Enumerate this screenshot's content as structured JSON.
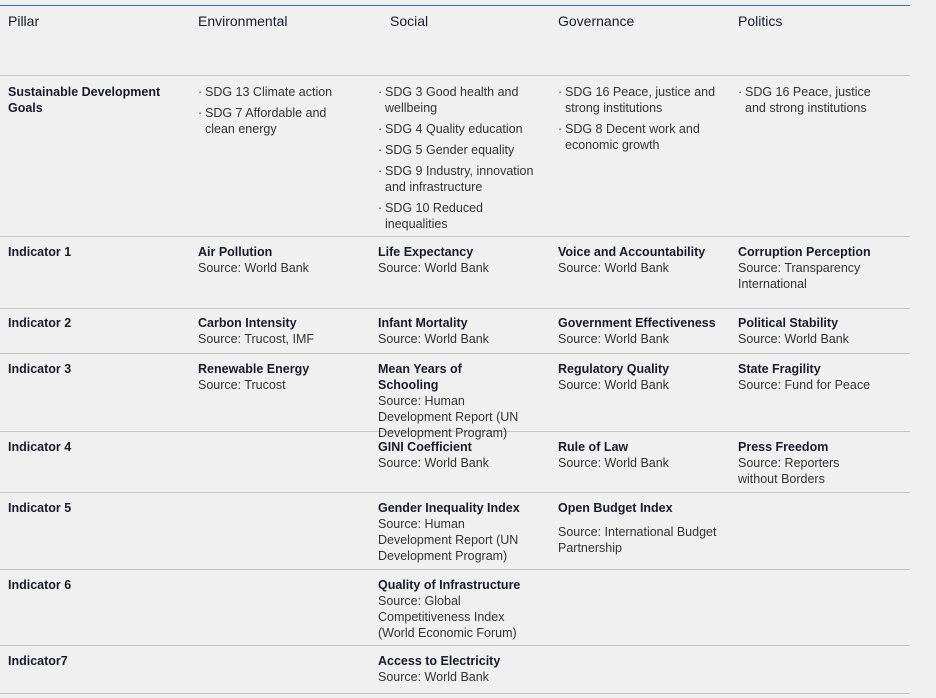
{
  "table": {
    "header": [
      "Pillar",
      "Environmental",
      "Social",
      "Governance",
      "Politics"
    ],
    "sdg_row": {
      "label": "Sustainable Development Goals",
      "cells": [
        [
          "SDG 13 Climate action",
          "SDG 7 Affordable and clean energy"
        ],
        [
          "SDG 3 Good health and wellbeing",
          "SDG 4 Quality education",
          "SDG 5 Gender equality",
          "SDG 9 Industry, innovation and infrastructure",
          "SDG 10 Reduced inequalities"
        ],
        [
          "SDG 16 Peace, justice and strong institutions",
          "SDG 8 Decent work and economic growth"
        ],
        [
          "SDG 16 Peace, justice and strong institutions"
        ]
      ]
    },
    "rows": [
      {
        "label": "Indicator 1",
        "cells": [
          {
            "name": "Air Pollution",
            "source": "Source: World Bank"
          },
          {
            "name": "Life Expectancy",
            "source": "Source: World Bank"
          },
          {
            "name": "Voice and Accountability",
            "source": "Source: World Bank"
          },
          {
            "name": "Corruption Perception",
            "source": "Source: Transparency International"
          }
        ]
      },
      {
        "label": "Indicator 2",
        "cells": [
          {
            "name": "Carbon Intensity",
            "source": "Source: Trucost, IMF"
          },
          {
            "name": "Infant Mortality",
            "source": "Source: World Bank"
          },
          {
            "name": "Government Effectiveness",
            "source": "Source: World Bank"
          },
          {
            "name": "Political Stability",
            "source": "Source: World Bank"
          }
        ]
      },
      {
        "label": "Indicator 3",
        "cells": [
          {
            "name": "Renewable Energy",
            "source": "Source: Trucost"
          },
          {
            "name": "Mean Years of Schooling",
            "source": "Source: Human Development Report (UN Development Program)"
          },
          {
            "name": "Regulatory Quality",
            "source": "Source: World Bank"
          },
          {
            "name": "State Fragility",
            "source": "Source: Fund for Peace"
          }
        ]
      },
      {
        "label": "Indicator 4",
        "cells": [
          null,
          {
            "name": "GINI Coefficient",
            "source": "Source: World Bank"
          },
          {
            "name": "Rule of Law",
            "source": "Source: World Bank"
          },
          {
            "name": "Press Freedom",
            "source": "Source: Reporters without Borders"
          }
        ]
      },
      {
        "label": "Indicator 5",
        "cells": [
          null,
          {
            "name": "Gender Inequality Index",
            "source": "Source: Human Development Report (UN Development Program)"
          },
          {
            "name": "Open Budget Index",
            "source": "Source: International Budget Partnership"
          },
          null
        ]
      },
      {
        "label": "Indicator 6",
        "cells": [
          null,
          {
            "name": "Quality of Infrastructure",
            "source": "Source: Global Competitiveness Index (World Economic Forum)"
          },
          null,
          null
        ]
      },
      {
        "label": "Indicator7",
        "cells": [
          null,
          {
            "name": "Access to Electricity",
            "source": "Source: World Bank"
          },
          null,
          null
        ]
      }
    ]
  }
}
